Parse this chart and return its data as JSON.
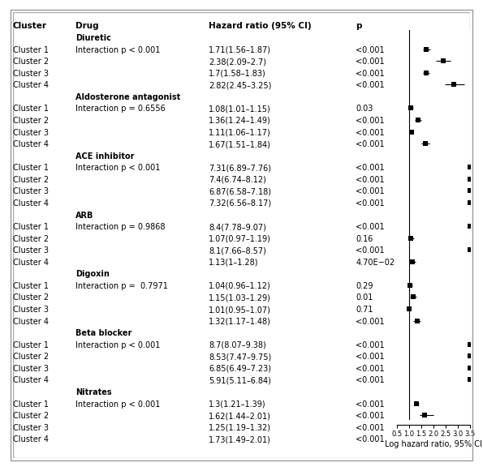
{
  "groups": [
    {
      "name": "Diuretic",
      "interaction": "Interaction p < 0.001",
      "clusters": [
        {
          "label": "Cluster 1",
          "hr": 1.71,
          "lo": 1.56,
          "hi": 1.87,
          "p": "<0.001",
          "text": "1.71(1.56–1.87)"
        },
        {
          "label": "Cluster 2",
          "hr": 2.38,
          "lo": 2.09,
          "hi": 2.7,
          "p": "<0.001",
          "text": "2.38(2.09–2.7)"
        },
        {
          "label": "Cluster 3",
          "hr": 1.7,
          "lo": 1.58,
          "hi": 1.83,
          "p": "<0.001",
          "text": "1.7(1.58–1.83)"
        },
        {
          "label": "Cluster 4",
          "hr": 2.82,
          "lo": 2.45,
          "hi": 3.25,
          "p": "<0.001",
          "text": "2.82(2.45–3.25)"
        }
      ]
    },
    {
      "name": "Aldosterone antagonist",
      "interaction": "Interaction p = 0.6556",
      "clusters": [
        {
          "label": "Cluster 1",
          "hr": 1.08,
          "lo": 1.01,
          "hi": 1.15,
          "p": "0.03",
          "text": "1.08(1.01–1.15)"
        },
        {
          "label": "Cluster 2",
          "hr": 1.36,
          "lo": 1.24,
          "hi": 1.49,
          "p": "<0.001",
          "text": "1.36(1.24–1.49)"
        },
        {
          "label": "Cluster 3",
          "hr": 1.11,
          "lo": 1.06,
          "hi": 1.17,
          "p": "<0.001",
          "text": "1.11(1.06–1.17)"
        },
        {
          "label": "Cluster 4",
          "hr": 1.67,
          "lo": 1.51,
          "hi": 1.84,
          "p": "<0.001",
          "text": "1.67(1.51–1.84)"
        }
      ]
    },
    {
      "name": "ACE inhibitor",
      "interaction": "Interaction p < 0.001",
      "clusters": [
        {
          "label": "Cluster 1",
          "hr": 7.31,
          "lo": 6.89,
          "hi": 7.76,
          "p": "<0.001",
          "text": "7.31(6.89–7.76)"
        },
        {
          "label": "Cluster 2",
          "hr": 7.4,
          "lo": 6.74,
          "hi": 8.12,
          "p": "<0.001",
          "text": "7.4(6.74–8.12)"
        },
        {
          "label": "Cluster 3",
          "hr": 6.87,
          "lo": 6.58,
          "hi": 7.18,
          "p": "<0.001",
          "text": "6.87(6.58–7.18)"
        },
        {
          "label": "Cluster 4",
          "hr": 7.32,
          "lo": 6.56,
          "hi": 8.17,
          "p": "<0.001",
          "text": "7.32(6.56–8.17)"
        }
      ]
    },
    {
      "name": "ARB",
      "interaction": "Interaction p = 0.9868",
      "clusters": [
        {
          "label": "Cluster 1",
          "hr": 8.4,
          "lo": 7.78,
          "hi": 9.07,
          "p": "<0.001",
          "text": "8.4(7.78–9.07)"
        },
        {
          "label": "Cluster 2",
          "hr": 1.07,
          "lo": 0.97,
          "hi": 1.19,
          "p": "0.16",
          "text": "1.07(0.97–1.19)"
        },
        {
          "label": "Cluster 3",
          "hr": 8.1,
          "lo": 7.66,
          "hi": 8.57,
          "p": "<0.001",
          "text": "8.1(7.66–8.57)"
        },
        {
          "label": "Cluster 4",
          "hr": 1.13,
          "lo": 1.0,
          "hi": 1.28,
          "p": "4.70E−02",
          "text": "1.13(1–1.28)"
        }
      ]
    },
    {
      "name": "Digoxin",
      "interaction": "Interaction p =  0.7971",
      "clusters": [
        {
          "label": "Cluster 1",
          "hr": 1.04,
          "lo": 0.96,
          "hi": 1.12,
          "p": "0.29",
          "text": "1.04(0.96–1.12)"
        },
        {
          "label": "Cluster 2",
          "hr": 1.15,
          "lo": 1.03,
          "hi": 1.29,
          "p": "0.01",
          "text": "1.15(1.03–1.29)"
        },
        {
          "label": "Cluster 3",
          "hr": 1.01,
          "lo": 0.95,
          "hi": 1.07,
          "p": "0.71",
          "text": "1.01(0.95–1.07)"
        },
        {
          "label": "Cluster 4",
          "hr": 1.32,
          "lo": 1.17,
          "hi": 1.48,
          "p": "<0.001",
          "text": "1.32(1.17–1.48)"
        }
      ]
    },
    {
      "name": "Beta blocker",
      "interaction": "Interaction p < 0.001",
      "clusters": [
        {
          "label": "Cluster 1",
          "hr": 8.7,
          "lo": 8.07,
          "hi": 9.38,
          "p": "<0.001",
          "text": "8.7(8.07–9.38)"
        },
        {
          "label": "Cluster 2",
          "hr": 8.53,
          "lo": 7.47,
          "hi": 9.75,
          "p": "<0.001",
          "text": "8.53(7.47–9.75)"
        },
        {
          "label": "Cluster 3",
          "hr": 6.85,
          "lo": 6.49,
          "hi": 7.23,
          "p": "<0.001",
          "text": "6.85(6.49–7.23)"
        },
        {
          "label": "Cluster 4",
          "hr": 5.91,
          "lo": 5.11,
          "hi": 6.84,
          "p": "<0.001",
          "text": "5.91(5.11–6.84)"
        }
      ]
    },
    {
      "name": "Nitrates",
      "interaction": "Interaction p < 0.001",
      "clusters": [
        {
          "label": "Cluster 1",
          "hr": 1.3,
          "lo": 1.21,
          "hi": 1.39,
          "p": "<0.001",
          "text": "1.3(1.21–1.39)"
        },
        {
          "label": "Cluster 2",
          "hr": 1.62,
          "lo": 1.44,
          "hi": 2.01,
          "p": "<0.001",
          "text": "1.62(1.44–2.01)"
        },
        {
          "label": "Cluster 3",
          "hr": 1.25,
          "lo": 1.19,
          "hi": 1.32,
          "p": "<0.001",
          "text": "1.25(1.19–1.32)"
        },
        {
          "label": "Cluster 4",
          "hr": 1.73,
          "lo": 1.49,
          "hi": 2.01,
          "p": "<0.001",
          "text": "1.73(1.49–2.01)"
        }
      ]
    }
  ],
  "xmin": 0.5,
  "xmax": 3.5,
  "xticks": [
    0.5,
    1.0,
    1.5,
    2.0,
    2.5,
    3.0,
    3.5
  ],
  "xlabel": "Log hazard ratio, 95% CI",
  "background_color": "#ffffff",
  "header_cluster": "Cluster",
  "header_drug": "Drug",
  "header_hr": "Hazard ratio (95% CI)",
  "header_p": "p",
  "border_color": "#888888"
}
